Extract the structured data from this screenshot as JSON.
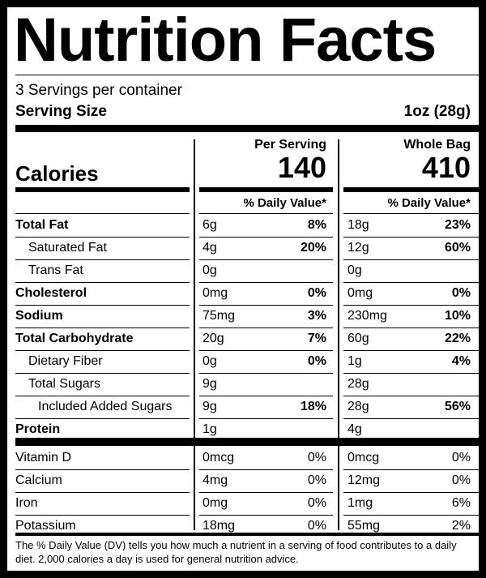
{
  "title": "Nutrition Facts",
  "servings_per_container": "3 Servings per container",
  "serving_size_label": "Serving Size",
  "serving_size_value": "1oz (28g)",
  "calories_label": "Calories",
  "columns": [
    {
      "header": "Per Serving",
      "calories": "140",
      "dv_header": "% Daily Value*"
    },
    {
      "header": "Whole Bag",
      "calories": "410",
      "dv_header": "% Daily Value*"
    }
  ],
  "nutrients": [
    {
      "name": "Total Fat",
      "bold": true,
      "indent": 0,
      "serving": {
        "amount": "6g",
        "dv": "8%"
      },
      "bag": {
        "amount": "18g",
        "dv": "23%"
      }
    },
    {
      "name": "Saturated Fat",
      "bold": false,
      "indent": 1,
      "serving": {
        "amount": "4g",
        "dv": "20%"
      },
      "bag": {
        "amount": "12g",
        "dv": "60%"
      }
    },
    {
      "name": "Trans Fat",
      "bold": false,
      "indent": 1,
      "serving": {
        "amount": "0g",
        "dv": ""
      },
      "bag": {
        "amount": "0g",
        "dv": ""
      }
    },
    {
      "name": "Cholesterol",
      "bold": true,
      "indent": 0,
      "serving": {
        "amount": "0mg",
        "dv": "0%"
      },
      "bag": {
        "amount": "0mg",
        "dv": "0%"
      }
    },
    {
      "name": "Sodium",
      "bold": true,
      "indent": 0,
      "serving": {
        "amount": "75mg",
        "dv": "3%"
      },
      "bag": {
        "amount": "230mg",
        "dv": "10%"
      }
    },
    {
      "name": "Total Carbohydrate",
      "bold": true,
      "indent": 0,
      "serving": {
        "amount": "20g",
        "dv": "7%"
      },
      "bag": {
        "amount": "60g",
        "dv": "22%"
      }
    },
    {
      "name": "Dietary Fiber",
      "bold": false,
      "indent": 1,
      "serving": {
        "amount": "0g",
        "dv": "0%"
      },
      "bag": {
        "amount": "1g",
        "dv": "4%"
      }
    },
    {
      "name": "Total Sugars",
      "bold": false,
      "indent": 1,
      "serving": {
        "amount": "9g",
        "dv": ""
      },
      "bag": {
        "amount": "28g",
        "dv": ""
      }
    },
    {
      "name": "Included Added Sugars",
      "bold": false,
      "indent": 2,
      "serving": {
        "amount": "9g",
        "dv": "18%"
      },
      "bag": {
        "amount": "28g",
        "dv": "56%"
      }
    },
    {
      "name": "Protein",
      "bold": true,
      "indent": 0,
      "serving": {
        "amount": "1g",
        "dv": ""
      },
      "bag": {
        "amount": "4g",
        "dv": ""
      }
    }
  ],
  "vitamins": [
    {
      "name": "Vitamin D",
      "serving": {
        "amount": "0mcg",
        "dv": "0%"
      },
      "bag": {
        "amount": "0mcg",
        "dv": "0%"
      }
    },
    {
      "name": "Calcium",
      "serving": {
        "amount": "4mg",
        "dv": "0%"
      },
      "bag": {
        "amount": "12mg",
        "dv": "0%"
      }
    },
    {
      "name": "Iron",
      "serving": {
        "amount": "0mg",
        "dv": "0%"
      },
      "bag": {
        "amount": "1mg",
        "dv": "6%"
      }
    },
    {
      "name": "Potassium",
      "serving": {
        "amount": "18mg",
        "dv": "0%"
      },
      "bag": {
        "amount": "55mg",
        "dv": "2%"
      }
    }
  ],
  "footnote": "The % Daily Value (DV) tells you how much a nutrient in a serving of food contributes to a daily diet. 2,000 calories a day is used for general nutrition advice."
}
